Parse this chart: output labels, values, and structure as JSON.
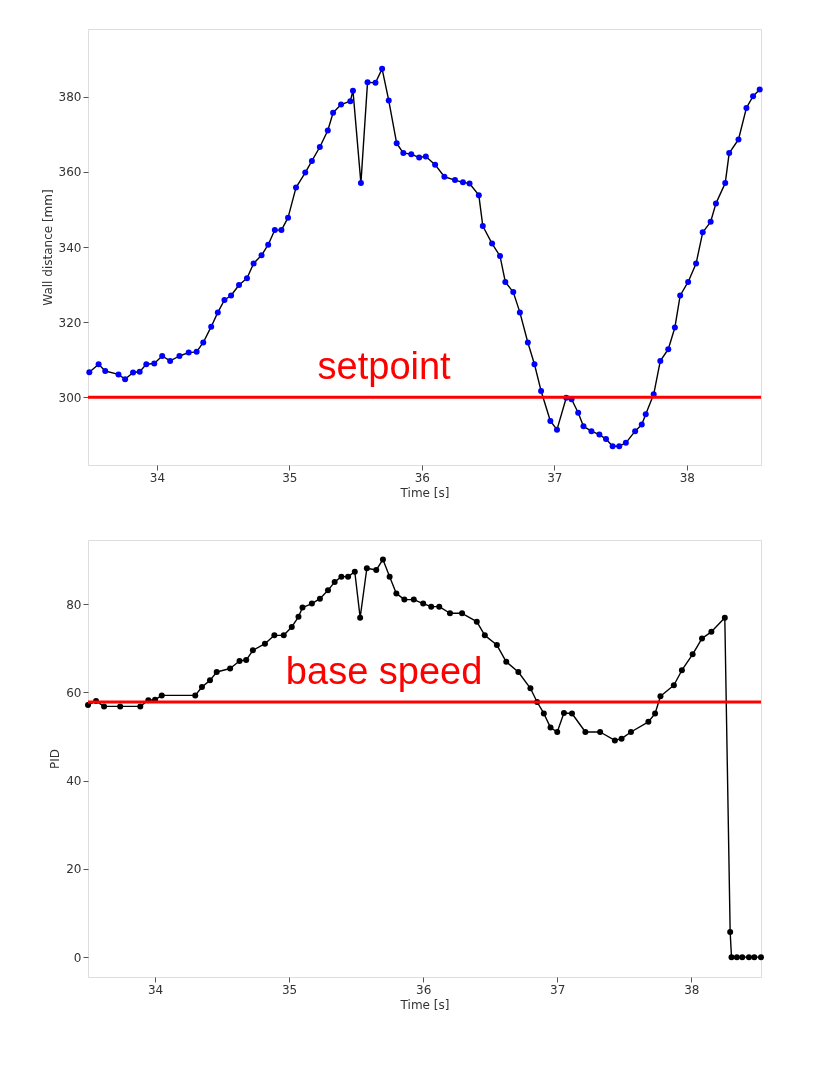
{
  "chart_data": [
    {
      "type": "line",
      "xlabel": "Time [s]",
      "ylabel": "Wall distance [mm]",
      "xlim": [
        33.48,
        38.56
      ],
      "ylim": [
        282,
        398
      ],
      "xticks": [
        34,
        35,
        36,
        37,
        38
      ],
      "yticks": [
        300,
        320,
        340,
        360,
        380
      ],
      "grid": false,
      "marker": "circle",
      "line_style": "solid",
      "x": [
        33.49,
        33.56,
        33.61,
        33.71,
        33.76,
        33.82,
        33.87,
        33.92,
        33.98,
        34.04,
        34.1,
        34.17,
        34.24,
        34.3,
        34.35,
        34.41,
        34.46,
        34.51,
        34.56,
        34.62,
        34.68,
        34.73,
        34.79,
        34.84,
        34.89,
        34.94,
        34.99,
        35.05,
        35.12,
        35.17,
        35.23,
        35.29,
        35.33,
        35.39,
        35.46,
        35.48,
        35.54,
        35.59,
        35.65,
        35.7,
        35.75,
        35.81,
        35.86,
        35.92,
        35.98,
        36.03,
        36.1,
        36.17,
        36.25,
        36.31,
        36.36,
        36.43,
        36.46,
        36.53,
        36.59,
        36.63,
        36.69,
        36.74,
        36.8,
        36.85,
        36.9,
        36.97,
        37.02,
        37.09,
        37.13,
        37.18,
        37.22,
        37.28,
        37.34,
        37.39,
        37.44,
        37.49,
        37.54,
        37.61,
        37.66,
        37.69,
        37.75,
        37.8,
        37.86,
        37.91,
        37.95,
        38.01,
        38.07,
        38.12,
        38.18,
        38.22,
        38.29,
        38.32,
        38.39,
        38.45,
        38.5,
        38.55
      ],
      "series": [
        {
          "marker": "none",
          "color": "#000000",
          "values": [
            306.7,
            308.8,
            307,
            306.1,
            304.8,
            306.6,
            306.8,
            308.8,
            309,
            311,
            309.7,
            311,
            311.9,
            312.1,
            314.6,
            318.8,
            322.6,
            325.9,
            327.1,
            329.9,
            331.7,
            335.6,
            337.8,
            340.6,
            344.5,
            344.5,
            347.8,
            355.8,
            359.8,
            362.9,
            366.6,
            371,
            375.7,
            377.9,
            378.8,
            381.6,
            357,
            383.8,
            383.7,
            387.4,
            379,
            367.6,
            365,
            364.7,
            363.8,
            364.1,
            361.9,
            358.7,
            357.8,
            357.2,
            356.9,
            353.8,
            345.6,
            340.9,
            337.6,
            330.7,
            328,
            322.6,
            314.6,
            308.8,
            301.7,
            293.7,
            291.4,
            299.9,
            299.5,
            295.9,
            292.3,
            291,
            290.1,
            288.9,
            287,
            287,
            287.9,
            291,
            292.8,
            295.5,
            300.8,
            309.7,
            312.8,
            318.6,
            327.1,
            330.7,
            335.6,
            343.9,
            346.7,
            351.6,
            357,
            365,
            368.6,
            377,
            380.1,
            381.9
          ]
        },
        {
          "type": "scatter",
          "color": "#0000ff",
          "values": [
            306.7,
            308.8,
            307,
            306.1,
            304.8,
            306.6,
            306.8,
            308.8,
            309,
            311,
            309.7,
            311,
            311.9,
            312.1,
            314.6,
            318.8,
            322.6,
            325.9,
            327.1,
            329.9,
            331.7,
            335.6,
            337.8,
            340.6,
            344.5,
            344.5,
            347.8,
            355.8,
            359.8,
            362.9,
            366.6,
            371,
            375.7,
            377.9,
            378.8,
            381.6,
            357,
            383.8,
            383.7,
            387.4,
            379,
            367.6,
            365,
            364.7,
            363.8,
            364.1,
            361.9,
            358.7,
            357.8,
            357.2,
            356.9,
            353.8,
            345.6,
            340.9,
            337.6,
            330.7,
            328,
            322.6,
            314.6,
            308.8,
            301.7,
            293.7,
            291.4,
            299.9,
            299.5,
            295.9,
            292.3,
            291,
            290.1,
            288.9,
            287,
            287,
            287.9,
            291,
            292.8,
            295.5,
            300.8,
            309.7,
            312.8,
            318.6,
            327.1,
            330.7,
            335.6,
            343.9,
            346.7,
            351.6,
            357,
            365,
            368.6,
            377,
            380.1,
            381.9
          ]
        }
      ],
      "ref_lines": [
        {
          "axis": "y",
          "value": 300,
          "label": "setpoint",
          "color": "#ff0000",
          "line_style": "solid"
        }
      ]
    },
    {
      "type": "line",
      "xlabel": "Time [s]",
      "ylabel": "PID",
      "xlim": [
        33.5,
        38.52
      ],
      "ylim": [
        -4.5,
        94.5
      ],
      "xticks": [
        34,
        35,
        36,
        37,
        38
      ],
      "yticks": [
        0,
        20,
        40,
        60,
        80
      ],
      "grid": false,
      "marker": "circle",
      "line_style": "solid",
      "x": [
        33.5,
        33.56,
        33.62,
        33.74,
        33.89,
        33.95,
        34.0,
        34.05,
        34.3,
        34.35,
        34.41,
        34.46,
        34.56,
        34.63,
        34.68,
        34.73,
        34.82,
        34.89,
        34.96,
        35.02,
        35.07,
        35.1,
        35.17,
        35.23,
        35.29,
        35.34,
        35.39,
        35.44,
        35.49,
        35.53,
        35.58,
        35.65,
        35.7,
        35.75,
        35.8,
        35.86,
        35.93,
        36.0,
        36.06,
        36.12,
        36.2,
        36.29,
        36.4,
        36.46,
        36.55,
        36.62,
        36.71,
        36.8,
        36.85,
        36.9,
        36.95,
        37.0,
        37.05,
        37.11,
        37.21,
        37.32,
        37.43,
        37.48,
        37.55,
        37.68,
        37.73,
        37.77,
        37.87,
        37.93,
        38.01,
        38.08,
        38.15,
        38.25,
        38.29,
        38.3,
        38.34,
        38.38,
        38.43,
        38.47,
        38.52
      ],
      "series": [
        {
          "color": "#000000",
          "values": [
            57.1,
            58,
            56.8,
            56.8,
            56.8,
            58.2,
            58.3,
            59.3,
            59.3,
            61.2,
            62.7,
            64.6,
            65.4,
            67.1,
            67.3,
            69.5,
            71,
            72.9,
            72.9,
            74.8,
            77.1,
            79.2,
            80.1,
            81.2,
            83.1,
            85,
            86.2,
            86.2,
            87.3,
            76.9,
            88.1,
            87.7,
            90.1,
            86.2,
            82.4,
            81,
            81,
            80.1,
            79.4,
            79.4,
            77.9,
            77.9,
            76,
            72.9,
            70.7,
            66.9,
            64.6,
            60.9,
            57.8,
            55.2,
            52,
            51,
            55.3,
            55.2,
            51,
            51,
            49.1,
            49.5,
            51,
            53.3,
            55.2,
            59.1,
            61.6,
            65,
            68.6,
            72.2,
            73.7,
            76.9,
            5.7,
            0,
            0,
            0,
            0,
            0,
            0
          ]
        }
      ],
      "ref_lines": [
        {
          "axis": "y",
          "value": 57.8,
          "label": "base speed",
          "color": "#ff0000",
          "line_style": "solid"
        }
      ]
    }
  ]
}
